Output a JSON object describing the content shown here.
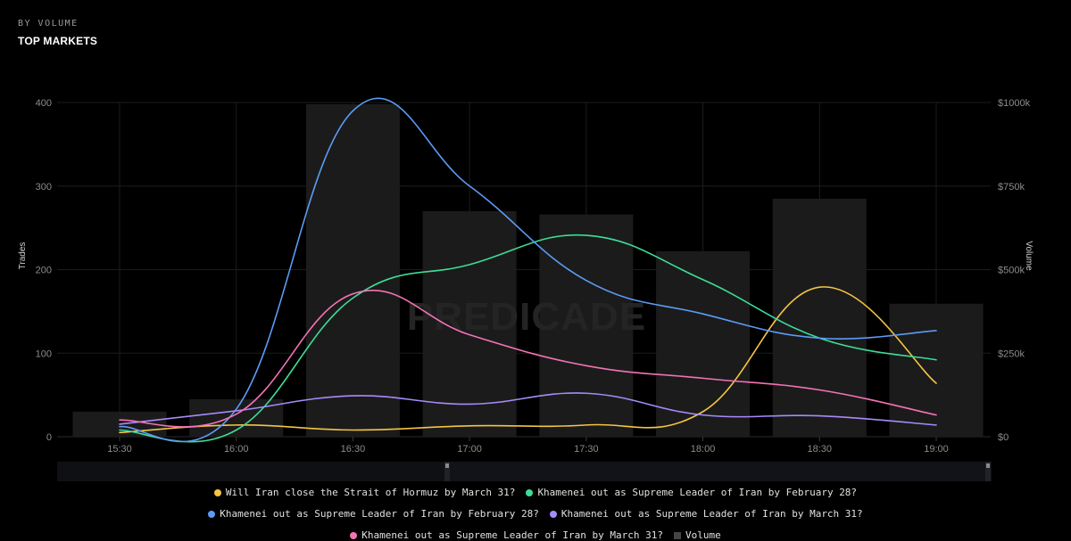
{
  "header": {
    "subtitle": "BY VOLUME",
    "title": "TOP MARKETS"
  },
  "watermark": "PREDICADE",
  "colors": {
    "background": "#000000",
    "grid": "#1c1c1c",
    "volume_bar": "#1b1b1b",
    "navigator_bg": "#0f1014"
  },
  "chart_data": {
    "type": "line",
    "x": [
      "15:30",
      "16:00",
      "16:30",
      "17:00",
      "17:30",
      "18:00",
      "18:30",
      "19:00"
    ],
    "x_minutes": [
      0,
      30,
      60,
      90,
      120,
      150,
      180,
      210
    ],
    "ylabel": "Trades",
    "y2label": "Volume",
    "ylim": [
      0,
      400
    ],
    "y2lim": [
      0,
      1000
    ],
    "yticks": [
      "0",
      "100",
      "200",
      "300",
      "400"
    ],
    "y2ticks": [
      "$0",
      "$250k",
      "$500k",
      "$750k",
      "$1000k"
    ],
    "grid": true,
    "legend": "bottom",
    "volume": {
      "name": "Volume",
      "color": "#444444",
      "categories": [
        "15:30",
        "16:00",
        "16:30",
        "17:00",
        "17:30",
        "18:00",
        "18:30",
        "19:00"
      ],
      "values": [
        75,
        112,
        995,
        675,
        665,
        555,
        712,
        398
      ]
    },
    "series": [
      {
        "name": "Will Iran close the Strait of Hormuz by March 31?",
        "color": "#f5c542",
        "x": [
          0,
          30,
          60,
          90,
          120,
          150,
          180,
          210
        ],
        "values": [
          5,
          14,
          8,
          13,
          14,
          30,
          179,
          64
        ]
      },
      {
        "name": "Khamenei out as Supreme Leader of Iran by February 28?",
        "color": "#3ddc97",
        "x": [
          0,
          30,
          60,
          90,
          120,
          150,
          180,
          210
        ],
        "values": [
          8,
          8,
          166,
          206,
          241,
          188,
          118,
          92
        ]
      },
      {
        "name": "Khamenei out as Supreme Leader of Iran by February 28?",
        "color": "#5b9cf5",
        "x": [
          0,
          30,
          60,
          90,
          120,
          150,
          180,
          210
        ],
        "values": [
          12,
          33,
          390,
          300,
          187,
          147,
          118,
          127
        ]
      },
      {
        "name": "Khamenei out as Supreme Leader of Iran by March 31?",
        "color": "#a78bfa",
        "x": [
          0,
          30,
          60,
          90,
          120,
          150,
          180,
          210
        ],
        "values": [
          15,
          31,
          49,
          39,
          52,
          26,
          25,
          14
        ]
      },
      {
        "name": "Khamenei out as Supreme Leader of Iran by March 31?",
        "color": "#f472b6",
        "x": [
          0,
          30,
          60,
          90,
          120,
          150,
          180,
          210
        ],
        "values": [
          20,
          27,
          171,
          122,
          85,
          70,
          56,
          26
        ]
      }
    ]
  }
}
